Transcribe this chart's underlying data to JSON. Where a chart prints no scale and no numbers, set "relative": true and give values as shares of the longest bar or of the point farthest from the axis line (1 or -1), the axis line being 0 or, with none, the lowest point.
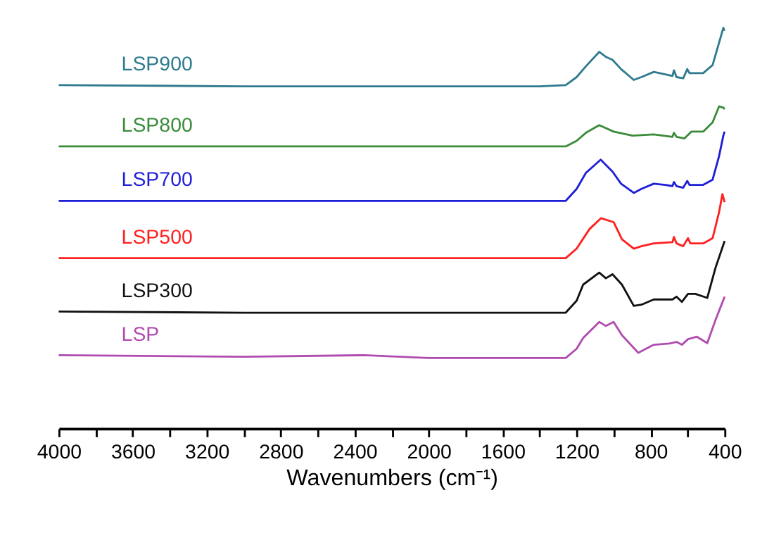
{
  "chart_data": {
    "type": "line",
    "relative": true,
    "xlabel": "Wavenumbers (cm⁻¹)",
    "xlim": [
      4000,
      400
    ],
    "xticks": [
      4000,
      {
        "value": 3800,
        "label": null
      },
      3600,
      {
        "value": 3400,
        "label": null
      },
      3200,
      {
        "value": 3000,
        "label": null
      },
      2800,
      {
        "value": 2600,
        "label": null
      },
      2400,
      {
        "value": 2200,
        "label": null
      },
      2000,
      {
        "value": 1800,
        "label": null
      },
      1600,
      {
        "value": 1400,
        "label": null
      },
      1200,
      {
        "value": 1000,
        "label": null
      },
      800,
      {
        "value": 600,
        "label": null
      },
      400
    ],
    "grid": false,
    "legend": false,
    "marker": "none",
    "line_style": "solid",
    "series": [
      {
        "name": "LSP900",
        "color": "#2f7a8e",
        "x": [
          4000,
          3000,
          2000,
          1400,
          1259,
          1200,
          1150,
          1078,
          1040,
          1006,
          960,
          891,
          850,
          783,
          720,
          682,
          674,
          660,
          624,
          602,
          590,
          516,
          465,
          430,
          407,
          400
        ],
        "values": [
          0.857,
          0.854,
          0.854,
          0.854,
          0.857,
          0.877,
          0.904,
          0.94,
          0.927,
          0.92,
          0.897,
          0.87,
          0.877,
          0.89,
          0.884,
          0.88,
          0.894,
          0.877,
          0.874,
          0.897,
          0.887,
          0.887,
          0.907,
          0.963,
          1.0,
          0.993
        ]
      },
      {
        "name": "LSP800",
        "color": "#3b8b3b",
        "x": [
          4000,
          3000,
          2000,
          1400,
          1259,
          1200,
          1150,
          1078,
          1000,
          898,
          783,
          682,
          674,
          660,
          617,
          580,
          516,
          465,
          430,
          407,
          400
        ],
        "values": [
          0.704,
          0.704,
          0.704,
          0.704,
          0.704,
          0.718,
          0.738,
          0.757,
          0.741,
          0.731,
          0.734,
          0.728,
          0.738,
          0.728,
          0.724,
          0.741,
          0.741,
          0.764,
          0.804,
          0.801,
          0.797
        ]
      },
      {
        "name": "LSP700",
        "color": "#1f1fd6",
        "x": [
          4000,
          3000,
          2000,
          1400,
          1259,
          1200,
          1150,
          1070,
          1006,
          960,
          891,
          850,
          783,
          720,
          682,
          674,
          660,
          624,
          602,
          590,
          516,
          465,
          430,
          407,
          400
        ],
        "values": [
          0.568,
          0.568,
          0.568,
          0.568,
          0.568,
          0.598,
          0.638,
          0.671,
          0.641,
          0.611,
          0.588,
          0.598,
          0.611,
          0.608,
          0.605,
          0.615,
          0.605,
          0.601,
          0.618,
          0.608,
          0.608,
          0.621,
          0.68,
          0.731,
          0.741
        ]
      },
      {
        "name": "LSP500",
        "color": "#ff2020",
        "x": [
          4000,
          3000,
          2000,
          1400,
          1259,
          1200,
          1130,
          1068,
          1000,
          955,
          891,
          850,
          783,
          682,
          674,
          660,
          624,
          598,
          585,
          516,
          465,
          430,
          412,
          400
        ],
        "values": [
          0.425,
          0.425,
          0.425,
          0.425,
          0.425,
          0.449,
          0.498,
          0.525,
          0.515,
          0.472,
          0.449,
          0.455,
          0.462,
          0.465,
          0.478,
          0.462,
          0.455,
          0.475,
          0.462,
          0.462,
          0.475,
          0.54,
          0.585,
          0.565
        ]
      },
      {
        "name": "LSP300",
        "color": "#111111",
        "x": [
          4000,
          3000,
          2000,
          1400,
          1259,
          1200,
          1165,
          1078,
          1042,
          1006,
          955,
          891,
          850,
          783,
          682,
          660,
          631,
          598,
          558,
          494,
          450,
          400
        ],
        "values": [
          0.292,
          0.289,
          0.289,
          0.289,
          0.289,
          0.319,
          0.359,
          0.389,
          0.375,
          0.385,
          0.359,
          0.306,
          0.309,
          0.322,
          0.322,
          0.329,
          0.316,
          0.336,
          0.336,
          0.326,
          0.4,
          0.468
        ]
      },
      {
        "name": "LSP",
        "color": "#b04cb0",
        "x": [
          4000,
          3000,
          2350,
          2000,
          1400,
          1259,
          1200,
          1165,
          1078,
          1042,
          1000,
          955,
          867,
          783,
          700,
          660,
          631,
          598,
          550,
          494,
          450,
          400
        ],
        "values": [
          0.183,
          0.179,
          0.183,
          0.176,
          0.176,
          0.176,
          0.199,
          0.226,
          0.266,
          0.256,
          0.266,
          0.233,
          0.189,
          0.209,
          0.212,
          0.216,
          0.209,
          0.223,
          0.229,
          0.213,
          0.27,
          0.329
        ]
      }
    ]
  }
}
